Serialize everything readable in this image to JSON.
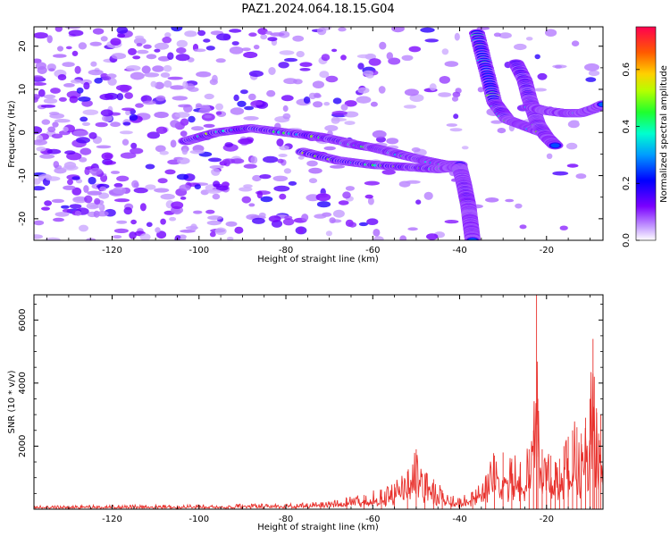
{
  "title": "PAZ1.2024.064.18.15.G04",
  "colors": {
    "snr_line": "#e8312c",
    "frame": "#000000"
  },
  "chart_data": [
    {
      "type": "heatmap",
      "xlabel": "Height of straight line (km)",
      "ylabel": "Frequency (Hz)",
      "xlim": [
        -138,
        -7
      ],
      "ylim": [
        -25,
        24.5
      ],
      "x_ticks": [
        -120,
        -100,
        -80,
        -60,
        -40,
        -20
      ],
      "y_ticks": [
        -20,
        -10,
        0,
        10,
        20
      ],
      "colorbar": {
        "label": "Normalized spectral amplitude",
        "range": [
          0,
          0.75
        ],
        "ticks": [
          0.0,
          0.2,
          0.4,
          0.6
        ],
        "colormap": "gist_rainbow_r-like (white/violet to red)"
      },
      "ridges": [
        {
          "segment": "main_left",
          "x": [
            -103,
            -96,
            -88,
            -80,
            -72,
            -65
          ],
          "y": [
            -2,
            0,
            1,
            0,
            -1,
            -2.5
          ]
        },
        {
          "segment": "main_right_upper",
          "x": [
            -66,
            -60,
            -54,
            -48,
            -43,
            -40
          ],
          "y": [
            -2.5,
            -3.5,
            -5,
            -6.5,
            -7.5,
            -7.5
          ]
        },
        {
          "segment": "main_right_lower",
          "x": [
            -76,
            -68,
            -60,
            -52,
            -45,
            -40
          ],
          "y": [
            -4.5,
            -6.5,
            -7.5,
            -8,
            -8.5,
            -8
          ]
        },
        {
          "segment": "descent",
          "x": [
            -40,
            -39,
            -38,
            -37.5,
            -37
          ],
          "y": [
            -8,
            -12,
            -17,
            -21,
            -25
          ]
        },
        {
          "segment": "upper_branch",
          "x": [
            -36,
            -34,
            -32,
            -29,
            -25,
            -21
          ],
          "y": [
            23,
            15,
            7,
            3,
            1.5,
            0
          ]
        },
        {
          "segment": "secondary_branch",
          "x": [
            -27,
            -25,
            -24,
            -23,
            -22,
            -20,
            -18
          ],
          "y": [
            16,
            12,
            8,
            5,
            2,
            -1,
            -3
          ]
        },
        {
          "segment": "right_band",
          "x": [
            -24,
            -20,
            -16,
            -12,
            -9,
            -7
          ],
          "y": [
            6,
            5,
            4.5,
            4.5,
            5.5,
            6.5
          ]
        }
      ]
    },
    {
      "type": "line",
      "xlabel": "Height of straight line (km)",
      "ylabel": "SNR (10 * v/v)",
      "xlim": [
        -138,
        -7
      ],
      "ylim": [
        0,
        6800
      ],
      "x_ticks": [
        -120,
        -100,
        -80,
        -60,
        -40,
        -20
      ],
      "y_ticks": [
        2000,
        4000,
        6000
      ],
      "series": [
        {
          "x": [
            -138,
            -130,
            -120,
            -110,
            -100,
            -90,
            -80,
            -72,
            -66,
            -62,
            -58,
            -55,
            -52,
            -50,
            -48,
            -46,
            -44,
            -42,
            -40,
            -37,
            -34,
            -32,
            -30,
            -28,
            -26,
            -24,
            -23,
            -22.3,
            -22,
            -21,
            -20,
            -19,
            -18,
            -17,
            -16,
            -15,
            -14,
            -13,
            -12,
            -11,
            -10,
            -9.3,
            -9,
            -8.5,
            -8,
            -7.5,
            -7
          ],
          "y": [
            100,
            110,
            120,
            130,
            140,
            150,
            170,
            210,
            350,
            450,
            620,
            800,
            1200,
            1900,
            1100,
            950,
            600,
            400,
            350,
            550,
            1000,
            1700,
            1800,
            1600,
            1500,
            1900,
            2500,
            6800,
            3500,
            1900,
            1500,
            1700,
            1500,
            1600,
            2000,
            2300,
            2500,
            2600,
            2400,
            2900,
            3500,
            5400,
            4200,
            3200,
            2400,
            3000,
            2200
          ]
        }
      ]
    }
  ]
}
